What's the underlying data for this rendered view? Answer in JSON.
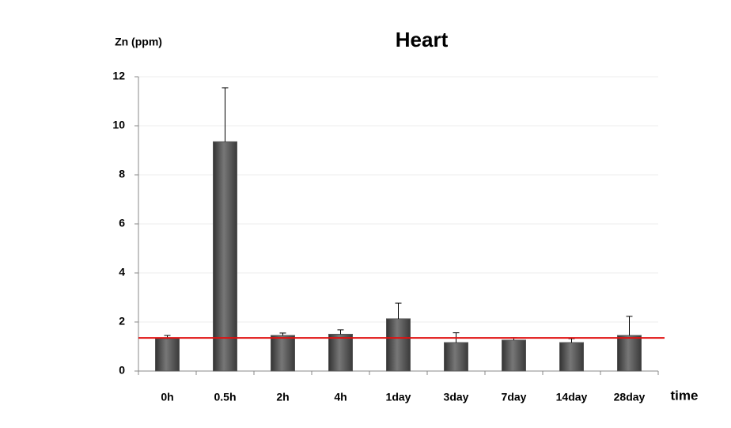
{
  "chart_data": {
    "type": "bar",
    "title": "Heart",
    "y_label": "Zn (ppm)",
    "x_label": "time",
    "categories": [
      "0h",
      "0.5h",
      "2h",
      "4h",
      "1day",
      "3day",
      "7day",
      "14day",
      "28day"
    ],
    "values": [
      1.32,
      9.35,
      1.45,
      1.5,
      2.13,
      1.16,
      1.26,
      1.16,
      1.45
    ],
    "errors": [
      0.13,
      2.2,
      0.1,
      0.18,
      0.64,
      0.4,
      0.1,
      0.16,
      0.78
    ],
    "color": "#555555",
    "reference_line": {
      "value": 1.35,
      "color": "#e01010"
    },
    "ylim": [
      0,
      12
    ],
    "yticks": [
      0,
      2,
      4,
      6,
      8,
      10,
      12
    ],
    "grid": true
  }
}
